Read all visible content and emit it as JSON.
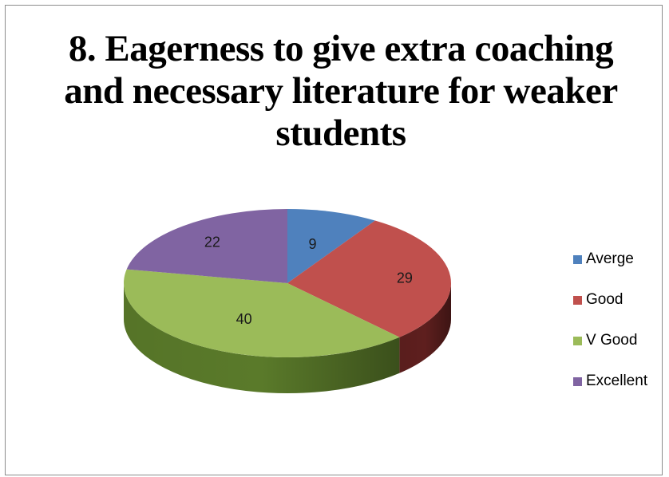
{
  "chart_data": {
    "type": "pie",
    "title": "8. Eagerness to give extra coaching and necessary literature for weaker students",
    "categories": [
      "Averge",
      "Good",
      "V Good",
      "Excellent"
    ],
    "values": [
      9,
      29,
      40,
      22
    ],
    "colors": [
      "#4f81bd",
      "#c0504d",
      "#9bbb59",
      "#8064a2"
    ],
    "side_colors": [
      "#2c4a6e",
      "#5e1f1e",
      "#5a7a2a",
      "#4a3a66"
    ],
    "data_labels": [
      "9",
      "29",
      "40",
      "22"
    ],
    "legend_position": "right",
    "three_d": true
  }
}
